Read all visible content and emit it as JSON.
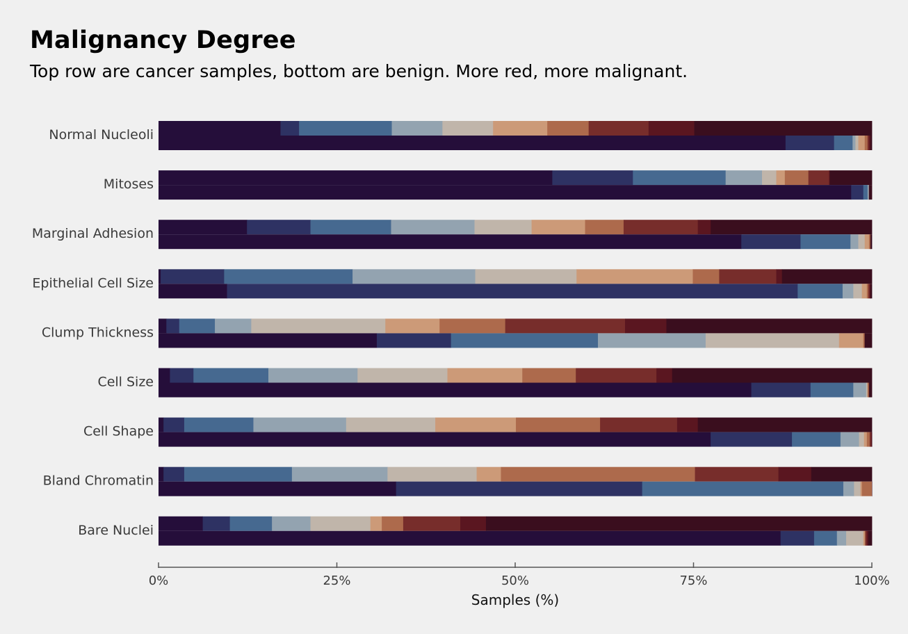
{
  "title": "Malignancy Degree",
  "subtitle": "Top row are cancer samples, bottom are benign. More red, more malignant.",
  "chart_data": {
    "type": "bar",
    "stacked": true,
    "orientation": "horizontal",
    "title": "Malignancy Degree",
    "subtitle": "Top row are cancer samples, bottom are benign. More red, more malignant.",
    "xlabel": "Samples (%)",
    "ylabel": "",
    "xlim": [
      0,
      100
    ],
    "xticks": [
      "0%",
      "25%",
      "50%",
      "75%",
      "100%"
    ],
    "grid": false,
    "legend": "none",
    "segment_colors": [
      "#250e3a",
      "#2e3263",
      "#466990",
      "#93a3b0",
      "#c0b5aa",
      "#cc9a78",
      "#ad6a4c",
      "#772d2b",
      "#5a1620",
      "#3a0e1e"
    ],
    "categories": [
      "Normal Nucleoli",
      "Mitoses",
      "Marginal Adhesion",
      "Epithelial Cell Size",
      "Clump Thickness",
      "Cell Size",
      "Cell Shape",
      "Bland Chromatin",
      "Bare Nuclei"
    ],
    "rows": [
      {
        "category": "Normal Nucleoli",
        "cancer": [
          17.1,
          2.6,
          13.0,
          7.1,
          7.1,
          7.6,
          5.8,
          8.4,
          6.4,
          24.9
        ],
        "benign": [
          87.9,
          6.8,
          2.6,
          0.4,
          0.4,
          0.9,
          0.4,
          0.2,
          0.2,
          0.2
        ]
      },
      {
        "category": "Mitoses",
        "cancer": [
          55.2,
          11.3,
          13.0,
          5.1,
          2.0,
          1.2,
          3.3,
          2.9,
          0.1,
          5.9
        ],
        "benign": [
          97.1,
          1.7,
          0.6,
          0.2,
          0.0,
          0.0,
          0.0,
          0.0,
          0.0,
          0.4
        ]
      },
      {
        "category": "Marginal Adhesion",
        "cancer": [
          12.4,
          8.9,
          11.3,
          11.7,
          8.0,
          7.5,
          5.4,
          10.4,
          1.8,
          22.6
        ],
        "benign": [
          81.7,
          8.3,
          7.0,
          1.1,
          0.9,
          0.6,
          0.2,
          0.0,
          0.0,
          0.2
        ]
      },
      {
        "category": "Epithelial Cell Size",
        "cancer": [
          0.3,
          8.9,
          18.0,
          17.2,
          14.2,
          16.3,
          3.7,
          8.0,
          0.8,
          12.6
        ],
        "benign": [
          9.6,
          80.0,
          6.3,
          1.5,
          1.2,
          0.7,
          0.2,
          0.2,
          0.1,
          0.2
        ]
      },
      {
        "category": "Clump Thickness",
        "cancer": [
          1.1,
          1.8,
          5.0,
          5.1,
          18.8,
          7.6,
          9.2,
          16.8,
          5.8,
          28.8
        ],
        "benign": [
          30.6,
          10.4,
          20.6,
          15.1,
          18.7,
          3.4,
          0.2,
          0.0,
          0.0,
          1.0
        ]
      },
      {
        "category": "Cell Size",
        "cancer": [
          1.6,
          3.3,
          10.5,
          12.5,
          12.6,
          10.5,
          7.5,
          11.3,
          2.2,
          28.0
        ],
        "benign": [
          83.1,
          8.3,
          6.0,
          1.8,
          0.2,
          0.0,
          0.2,
          0.0,
          0.0,
          0.4
        ]
      },
      {
        "category": "Cell Shape",
        "cancer": [
          0.7,
          2.9,
          9.7,
          13.0,
          12.5,
          11.3,
          11.8,
          10.8,
          2.9,
          24.4
        ],
        "benign": [
          77.4,
          11.4,
          6.8,
          2.6,
          0.7,
          0.4,
          0.4,
          0.2,
          0.1,
          0.0
        ]
      },
      {
        "category": "Bland Chromatin",
        "cancer": [
          0.7,
          2.9,
          15.1,
          13.4,
          12.5,
          3.4,
          27.2,
          11.7,
          4.6,
          8.5
        ],
        "benign": [
          33.3,
          34.5,
          28.2,
          1.5,
          0.9,
          0.2,
          1.4,
          0.0,
          0.0,
          0.0
        ]
      },
      {
        "category": "Bare Nuclei",
        "cancer": [
          6.2,
          3.8,
          5.9,
          5.4,
          8.4,
          1.6,
          3.0,
          8.0,
          3.6,
          54.1
        ],
        "benign": [
          87.2,
          4.7,
          3.2,
          1.3,
          2.4,
          0.2,
          0.1,
          0.2,
          0.2,
          0.5
        ]
      }
    ]
  }
}
